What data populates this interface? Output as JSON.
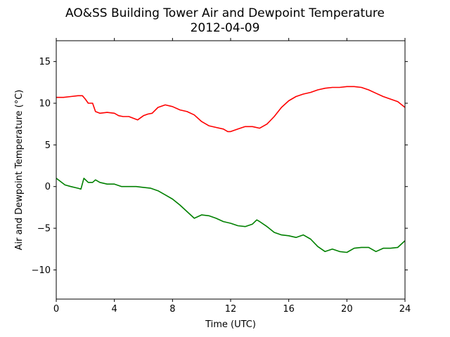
{
  "chart_data": {
    "type": "line",
    "title": "AO&SS Building Tower Air and Dewpoint Temperature",
    "subtitle": "2012-04-09",
    "xlabel": "Time (UTC)",
    "ylabel": "Air and Dewpoint Temperature (°C)",
    "xlim": [
      0,
      24
    ],
    "ylim": [
      -13.5,
      17.5
    ],
    "xticks": [
      0,
      4,
      8,
      12,
      16,
      20,
      24
    ],
    "yticks": [
      -10,
      -5,
      0,
      5,
      10,
      15
    ],
    "grid": false,
    "legend": "none",
    "series": [
      {
        "color": "#ff0000",
        "x": [
          0,
          0.5,
          1,
          1.5,
          1.8,
          2.0,
          2.2,
          2.5,
          2.7,
          3,
          3.5,
          4,
          4.3,
          4.6,
          5,
          5.3,
          5.6,
          6,
          6.3,
          6.6,
          7,
          7.5,
          8,
          8.5,
          9,
          9.5,
          10,
          10.5,
          11,
          11.5,
          11.8,
          12,
          12.5,
          13,
          13.5,
          14,
          14.5,
          15,
          15.5,
          16,
          16.5,
          17,
          17.5,
          18,
          18.5,
          19,
          19.5,
          20,
          20.5,
          21,
          21.5,
          22,
          22.5,
          23,
          23.5,
          24
        ],
        "y": [
          10.7,
          10.7,
          10.8,
          10.9,
          10.9,
          10.5,
          10.0,
          10.0,
          9.0,
          8.8,
          8.9,
          8.8,
          8.5,
          8.4,
          8.4,
          8.2,
          8.0,
          8.5,
          8.7,
          8.8,
          9.5,
          9.8,
          9.6,
          9.2,
          9.0,
          8.6,
          7.8,
          7.3,
          7.1,
          6.9,
          6.6,
          6.6,
          6.9,
          7.2,
          7.2,
          7.0,
          7.5,
          8.4,
          9.5,
          10.3,
          10.8,
          11.1,
          11.3,
          11.6,
          11.8,
          11.9,
          11.9,
          12.0,
          12.0,
          11.9,
          11.6,
          11.2,
          10.8,
          10.5,
          10.2,
          9.5
        ]
      },
      {
        "color": "#008000",
        "x": [
          0,
          0.3,
          0.6,
          1,
          1.5,
          1.7,
          1.9,
          2.2,
          2.5,
          2.7,
          3,
          3.5,
          4,
          4.5,
          5,
          5.5,
          6,
          6.5,
          7,
          7.5,
          8,
          8.5,
          9,
          9.5,
          10,
          10.5,
          11,
          11.5,
          12,
          12.5,
          13,
          13.5,
          13.8,
          14,
          14.5,
          15,
          15.5,
          16,
          16.5,
          17,
          17.5,
          18,
          18.5,
          19,
          19.5,
          20,
          20.5,
          21,
          21.5,
          22,
          22.5,
          23,
          23.5,
          24
        ],
        "y": [
          1.0,
          0.6,
          0.2,
          0.0,
          -0.2,
          -0.3,
          1.0,
          0.5,
          0.5,
          0.8,
          0.5,
          0.3,
          0.3,
          0.0,
          0.0,
          0.0,
          -0.1,
          -0.2,
          -0.5,
          -1.0,
          -1.5,
          -2.2,
          -3.0,
          -3.8,
          -3.4,
          -3.5,
          -3.8,
          -4.2,
          -4.4,
          -4.7,
          -4.8,
          -4.5,
          -4.0,
          -4.2,
          -4.8,
          -5.5,
          -5.8,
          -5.9,
          -6.1,
          -5.8,
          -6.3,
          -7.2,
          -7.8,
          -7.5,
          -7.8,
          -7.9,
          -7.4,
          -7.3,
          -7.3,
          -7.8,
          -7.4,
          -7.4,
          -7.3,
          -6.5
        ]
      }
    ]
  }
}
